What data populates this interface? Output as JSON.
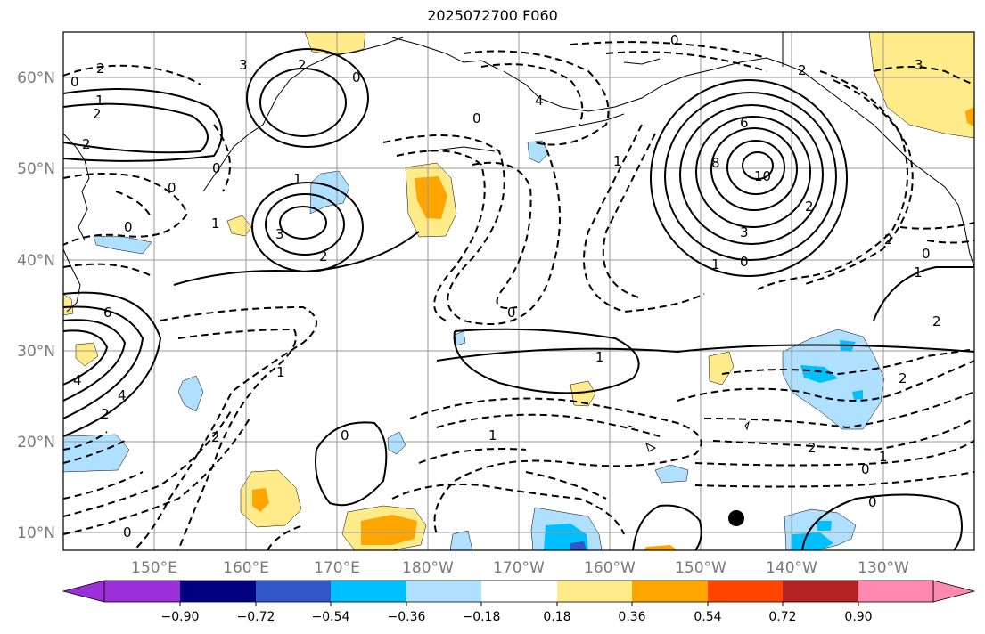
{
  "title": "2025072700 F060",
  "map": {
    "lon_labels": [
      "150°E",
      "160°E",
      "170°E",
      "180°W",
      "170°W",
      "160°W",
      "150°W",
      "140°W",
      "130°W"
    ],
    "lat_labels": [
      "60°N",
      "50°N",
      "40°N",
      "30°N",
      "20°N",
      "10°N"
    ],
    "contour_labels": [
      "2",
      "0",
      "1",
      "2",
      "2",
      "0",
      "4",
      "2",
      "0",
      "1",
      "3",
      "2",
      "0",
      "1",
      "3",
      "2",
      "0",
      "0",
      "4",
      "0",
      "6",
      "8",
      "10",
      "3",
      "2",
      "1",
      "0",
      "0",
      "1",
      "2",
      "2",
      "1",
      "0",
      "1",
      "2",
      "0",
      "0",
      "1",
      "1",
      "1",
      "2",
      "2",
      "0",
      "0",
      "3",
      "2",
      "4",
      "6"
    ]
  },
  "colorbar": {
    "tick_labels": [
      "−0.90",
      "−0.72",
      "−0.54",
      "−0.36",
      "−0.18",
      "0.18",
      "0.36",
      "0.54",
      "0.72",
      "0.90"
    ],
    "colors": [
      "#9b30d8",
      "#000080",
      "#3157c9",
      "#00bfff",
      "#b0e0ff",
      "#ffffff",
      "#ffeb8a",
      "#ffa500",
      "#ff4500",
      "#b22222",
      "#ff88b0"
    ]
  },
  "shading_colors": {
    "light_yellow": "#ffeb8a",
    "orange": "#ffa500",
    "light_blue": "#b0e0ff",
    "deep_sky_blue": "#00bfff",
    "royal_blue": "#3157c9"
  }
}
